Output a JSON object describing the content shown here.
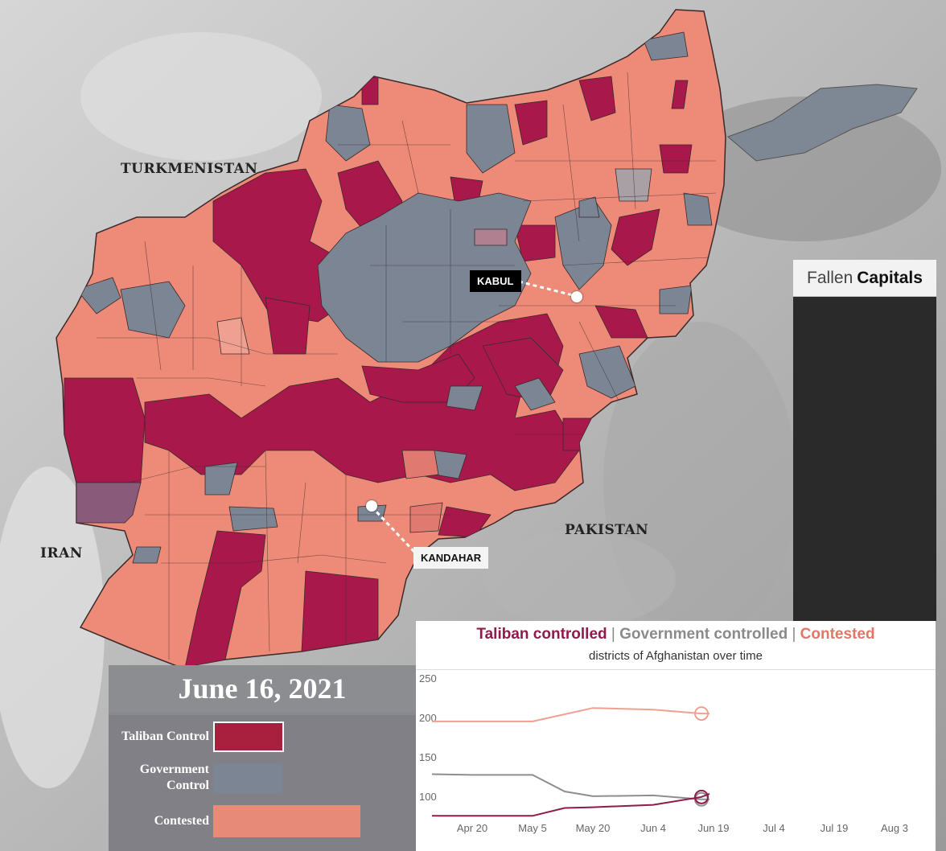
{
  "map": {
    "countries": {
      "turkmenistan": "TURKMENISTAN",
      "iran": "IRAN",
      "pakistan": "PAKISTAN"
    },
    "cities": {
      "kabul": "KABUL",
      "kandahar": "KANDAHAR"
    },
    "colors": {
      "taliban": "#a8184a",
      "government": "#7b8594",
      "contested": "#ee8a78",
      "contested_light": "#f0a090"
    }
  },
  "fallen_capitals": {
    "prefix": "Fallen",
    "bold": "Capitals"
  },
  "legend": {
    "date": "June 16, 2021",
    "items": [
      {
        "label_line1": "Taliban Control",
        "label_line2": "",
        "color": "#a8203e"
      },
      {
        "label_line1": "Government",
        "label_line2": "Control",
        "color": "#7b8594"
      },
      {
        "label_line1": "Contested",
        "label_line2": "",
        "color": "#e88a78"
      }
    ]
  },
  "chart": {
    "title_taliban": "Taliban controlled",
    "title_sep1": "|",
    "title_government": "Government controlled",
    "title_sep2": "|",
    "title_contested": "Contested",
    "subtitle": "districts of Afghanistan over time",
    "title_colors": {
      "taliban": "#8e1b4b",
      "government": "#8a8a8a",
      "contested": "#e0786a"
    }
  },
  "chart_data": {
    "type": "line",
    "x_ticks": [
      "Apr 20",
      "May 5",
      "May 20",
      "Jun 4",
      "Jun 19",
      "Jul 4",
      "Jul 19",
      "Aug 3"
    ],
    "y_ticks": [
      100,
      150,
      200,
      250
    ],
    "ylim": [
      60,
      250
    ],
    "xlim": [
      "2021-04-10",
      "2021-08-10"
    ],
    "grid": false,
    "series": [
      {
        "name": "Contested",
        "color": "#f0a090",
        "x": [
          "2021-04-10",
          "2021-04-20",
          "2021-05-05",
          "2021-05-20",
          "2021-06-04",
          "2021-06-16",
          "2021-06-18"
        ],
        "values": [
          196,
          196,
          196,
          213,
          211,
          206,
          206
        ]
      },
      {
        "name": "Government controlled",
        "color": "#8e8e8e",
        "x": [
          "2021-04-10",
          "2021-04-20",
          "2021-05-05",
          "2021-05-13",
          "2021-05-20",
          "2021-06-04",
          "2021-06-16",
          "2021-06-18"
        ],
        "values": [
          129,
          128,
          128,
          107,
          101,
          102,
          97,
          97
        ]
      },
      {
        "name": "Taliban controlled",
        "color": "#8e1b4b",
        "x": [
          "2021-04-10",
          "2021-04-20",
          "2021-05-05",
          "2021-05-13",
          "2021-05-20",
          "2021-06-04",
          "2021-06-16",
          "2021-06-18"
        ],
        "values": [
          76,
          76,
          76,
          86,
          87,
          90,
          100,
          104
        ]
      }
    ],
    "current_date": "2021-06-16"
  }
}
